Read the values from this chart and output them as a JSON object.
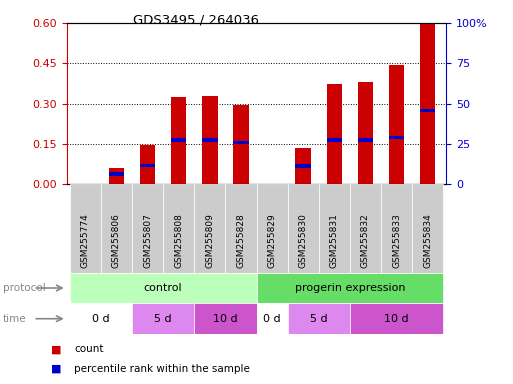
{
  "title": "GDS3495 / 264036",
  "samples": [
    "GSM255774",
    "GSM255806",
    "GSM255807",
    "GSM255808",
    "GSM255809",
    "GSM255828",
    "GSM255829",
    "GSM255830",
    "GSM255831",
    "GSM255832",
    "GSM255833",
    "GSM255834"
  ],
  "red_values": [
    0.0,
    0.062,
    0.148,
    0.325,
    0.33,
    0.295,
    0.0,
    0.135,
    0.375,
    0.38,
    0.445,
    0.6
  ],
  "blue_values": [
    0.0,
    0.038,
    0.07,
    0.165,
    0.165,
    0.155,
    0.0,
    0.068,
    0.165,
    0.165,
    0.175,
    0.275
  ],
  "ylim_left": [
    0,
    0.6
  ],
  "ylim_right": [
    0,
    100
  ],
  "yticks_left": [
    0,
    0.15,
    0.3,
    0.45,
    0.6
  ],
  "yticks_right": [
    0,
    25,
    50,
    75,
    100
  ],
  "ytick_labels_right": [
    "0",
    "25",
    "50",
    "75",
    "100%"
  ],
  "left_tick_color": "#cc0000",
  "right_tick_color": "#0000cc",
  "bar_color_red": "#cc0000",
  "bar_color_blue": "#0000cc",
  "bar_width": 0.5,
  "background_color": "#ffffff",
  "control_color": "#bbffbb",
  "progerin_color": "#66dd66",
  "time_0d_color": "#ffffff",
  "time_5d_color": "#dd88ee",
  "time_10d_color": "#cc55cc",
  "sample_bg_color": "#cccccc",
  "label_color": "#888888"
}
